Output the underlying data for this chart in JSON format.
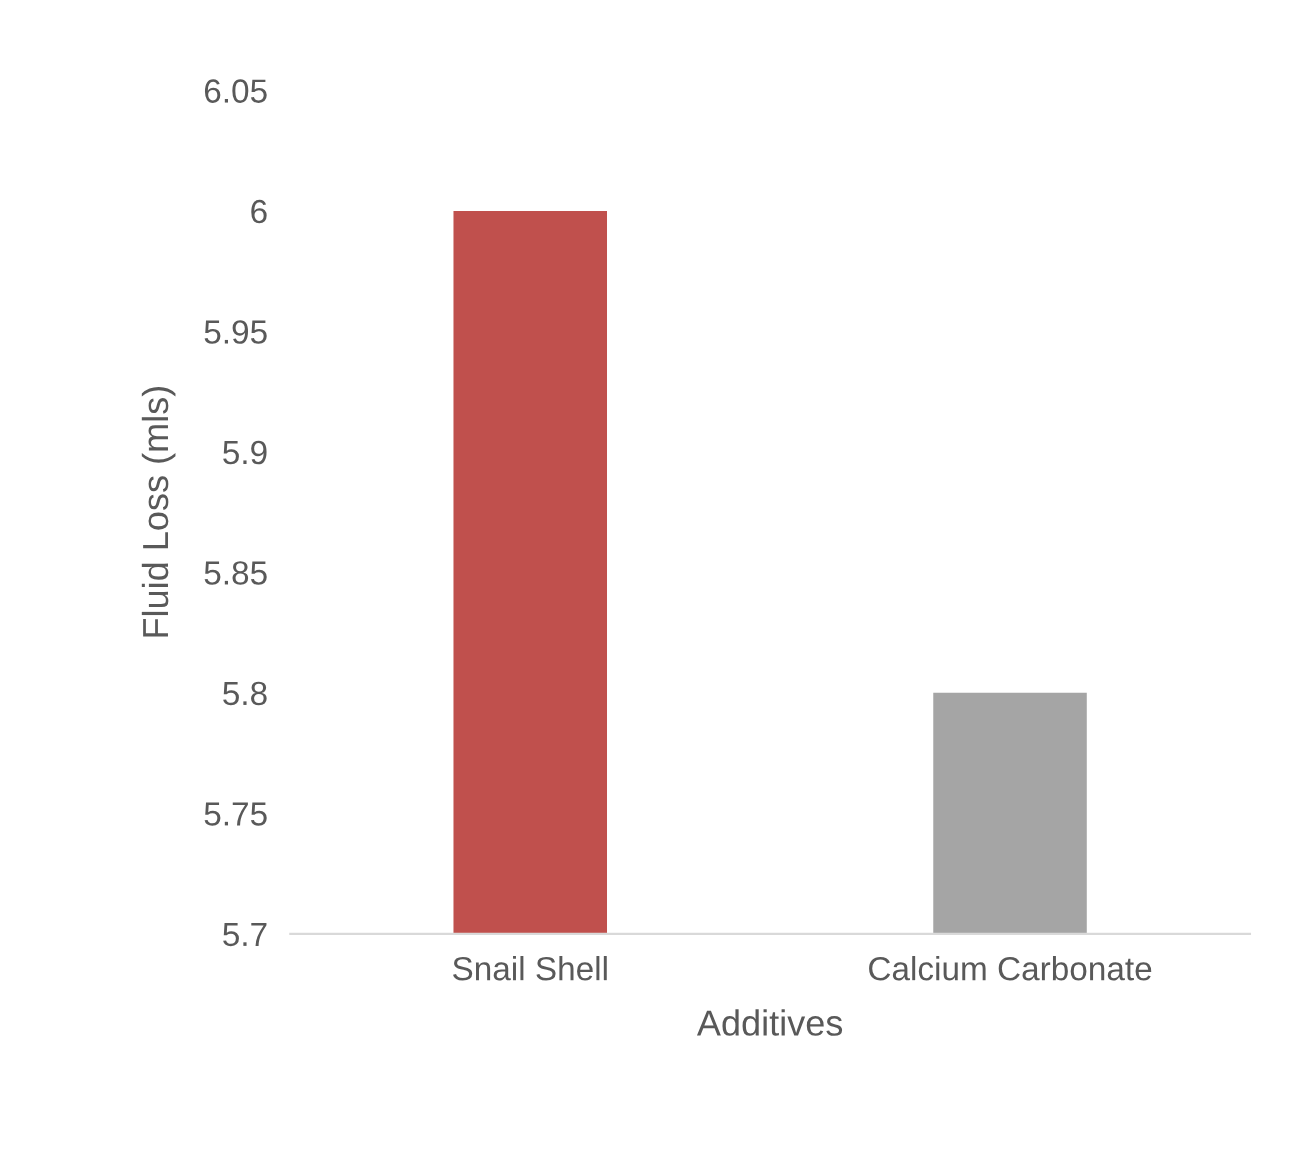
{
  "chart_data": {
    "type": "bar",
    "xlabel": "Additives",
    "ylabel": "Fluid Loss (mls)",
    "categories": [
      "Snail Shell",
      "Calcium Carbonate"
    ],
    "values": [
      6,
      5.8
    ],
    "colors": [
      "#c0504d",
      "#a5a5a5"
    ],
    "ylim": [
      5.7,
      6.05
    ],
    "yticks": [
      5.7,
      5.75,
      5.8,
      5.85,
      5.9,
      5.95,
      6,
      6.05
    ],
    "grid": false,
    "legend": false
  }
}
